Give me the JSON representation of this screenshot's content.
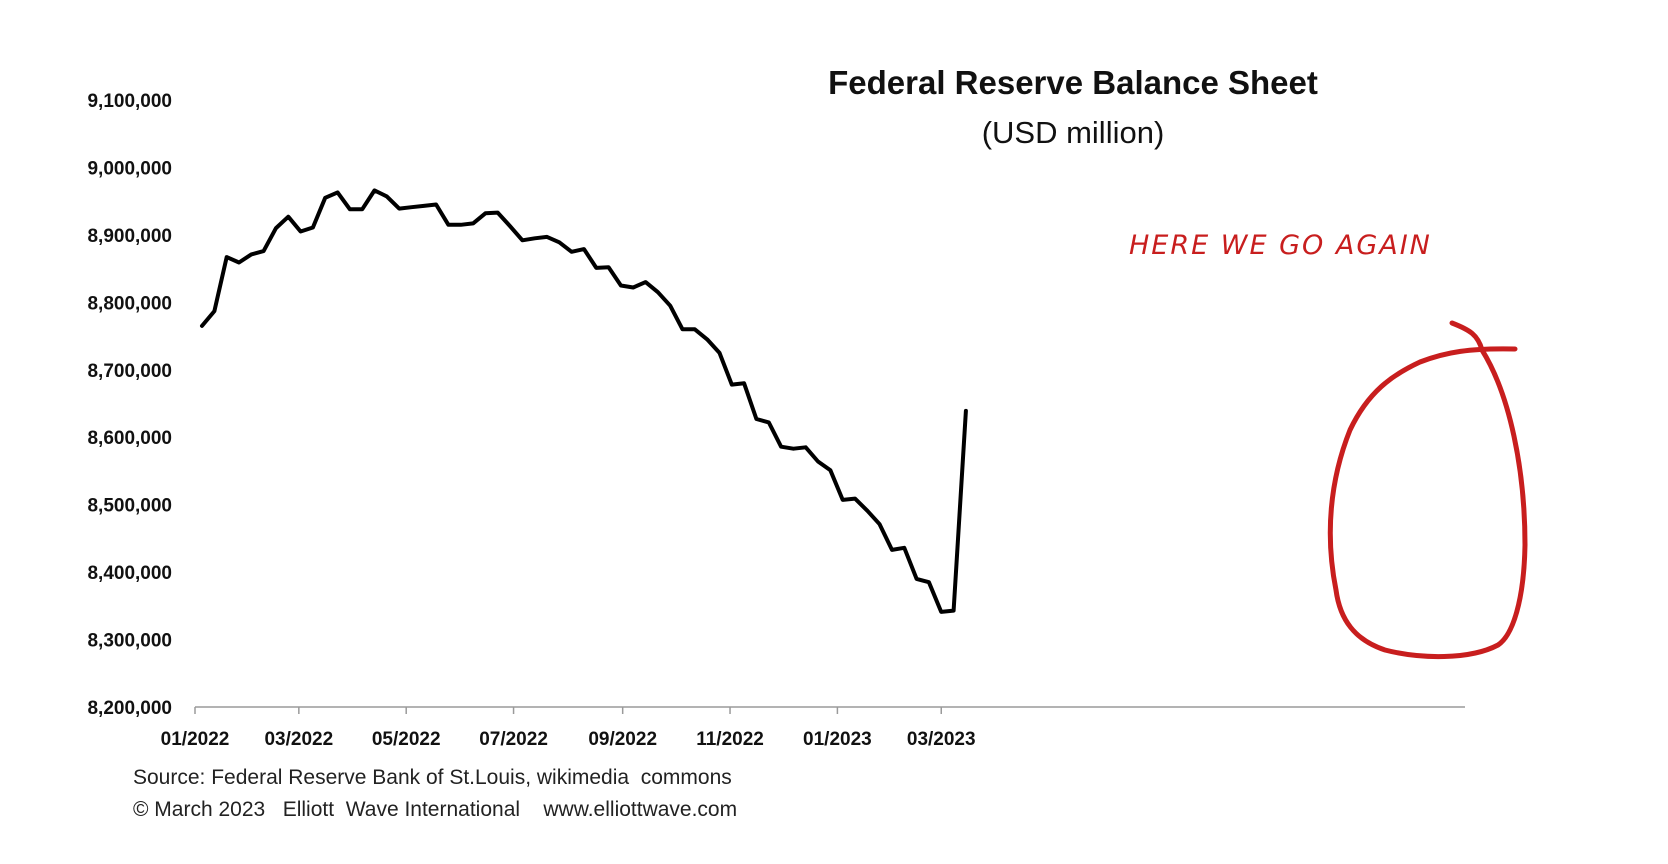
{
  "chart_data": {
    "type": "line",
    "title": "Federal Reserve Balance Sheet",
    "subtitle": "(USD million)",
    "xlabel": "",
    "ylabel": "",
    "ylim": [
      8200000,
      9100000
    ],
    "y_ticks": [
      "9,100,000",
      "9,000,000",
      "8,900,000",
      "8,800,000",
      "8,700,000",
      "8,600,000",
      "8,500,000",
      "8,400,000",
      "8,300,000",
      "8,200,000"
    ],
    "x_ticks": [
      "01/2022",
      "03/2022",
      "05/2022",
      "07/2022",
      "09/2022",
      "11/2022",
      "01/2023",
      "03/2023"
    ],
    "grid": false,
    "legend": "none",
    "series": [
      {
        "color": "#000000",
        "x": [
          "2022-01-05",
          "2022-01-12",
          "2022-01-19",
          "2022-01-26",
          "2022-02-02",
          "2022-02-09",
          "2022-02-16",
          "2022-02-23",
          "2022-03-02",
          "2022-03-09",
          "2022-03-16",
          "2022-03-23",
          "2022-03-30",
          "2022-04-06",
          "2022-04-13",
          "2022-04-20",
          "2022-04-27",
          "2022-05-04",
          "2022-05-11",
          "2022-05-18",
          "2022-05-25",
          "2022-06-01",
          "2022-06-08",
          "2022-06-15",
          "2022-06-22",
          "2022-06-29",
          "2022-07-06",
          "2022-07-13",
          "2022-07-20",
          "2022-07-27",
          "2022-08-03",
          "2022-08-10",
          "2022-08-17",
          "2022-08-24",
          "2022-08-31",
          "2022-09-07",
          "2022-09-14",
          "2022-09-21",
          "2022-09-28",
          "2022-10-05",
          "2022-10-12",
          "2022-10-19",
          "2022-10-26",
          "2022-11-02",
          "2022-11-09",
          "2022-11-16",
          "2022-11-23",
          "2022-11-30",
          "2022-12-07",
          "2022-12-14",
          "2022-12-21",
          "2022-12-28",
          "2023-01-04",
          "2023-01-11",
          "2023-01-18",
          "2023-01-25",
          "2023-02-01",
          "2023-02-08",
          "2023-02-15",
          "2023-02-22",
          "2023-03-01",
          "2023-03-08",
          "2023-03-15"
        ],
        "values": [
          8765000,
          8787000,
          8867000,
          8859000,
          8871000,
          8876000,
          8910000,
          8927000,
          8905000,
          8911000,
          8955000,
          8963000,
          8938000,
          8938000,
          8966000,
          8957000,
          8939000,
          8941000,
          8943000,
          8945000,
          8915000,
          8915000,
          8917000,
          8932000,
          8933000,
          8913000,
          8892000,
          8895000,
          8897000,
          8889000,
          8875000,
          8879000,
          8851000,
          8852000,
          8825000,
          8822000,
          8830000,
          8815000,
          8795000,
          8760000,
          8760000,
          8745000,
          8725000,
          8678000,
          8680000,
          8627000,
          8622000,
          8586000,
          8583000,
          8585000,
          8564000,
          8551000,
          8507000,
          8509000,
          8491000,
          8471000,
          8433000,
          8436000,
          8390000,
          8385000,
          8341000,
          8343000,
          8639000
        ]
      }
    ]
  },
  "annotation": {
    "text": "HERE WE GO AGAIN",
    "color": "#c81e1e"
  },
  "footer": {
    "source": "Source: Federal Reserve Bank of St.Louis, wikimedia  commons",
    "copyright": "© March 2023   Elliott  Wave International    www.elliottwave.com"
  }
}
